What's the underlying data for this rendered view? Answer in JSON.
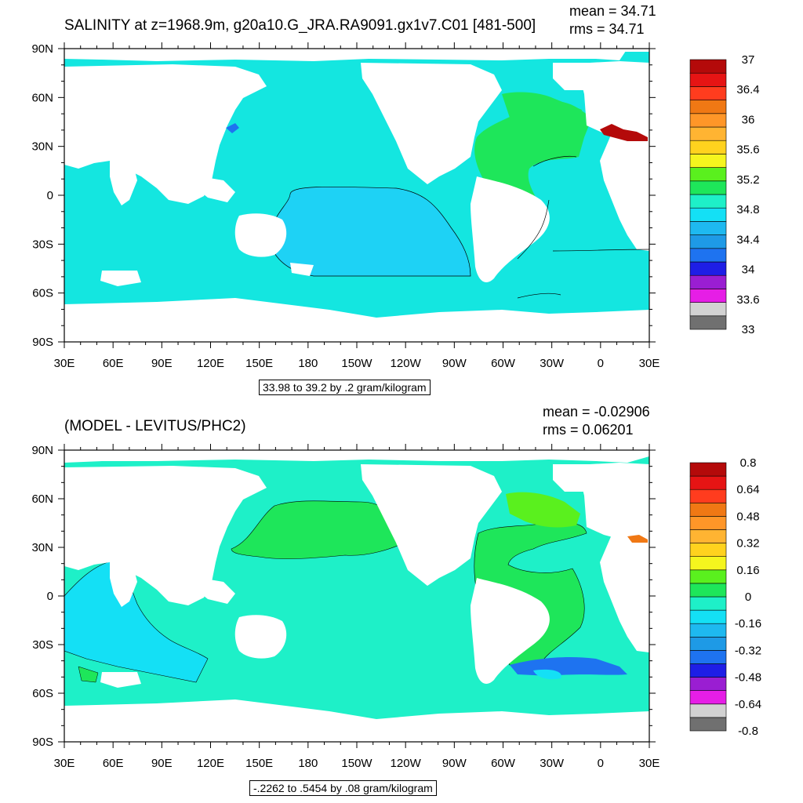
{
  "panel_top": {
    "title": "SALINITY at z=1968.9m, g20a10.G_JRA.RA9091.gx1v7.C01 [481-500]",
    "mean_label": "mean = 34.71",
    "rms_label": "rms = 34.71",
    "contour_info": "33.98 to 39.2 by .2 gram/kilogram",
    "colorbar": {
      "colors": [
        "#707070",
        "#d2d2d2",
        "#e61ee6",
        "#9a1ed2",
        "#1e1ee6",
        "#1e73f0",
        "#1e9ae6",
        "#1eb9f0",
        "#14e0f5",
        "#1ef0c8",
        "#1ee65a",
        "#5af01e",
        "#f5f51e",
        "#ffd21e",
        "#ffb432",
        "#ff9628",
        "#f07814",
        "#ff3c1e",
        "#e61414",
        "#b40a0a"
      ],
      "labels": [
        "33",
        "33.6",
        "34",
        "34.4",
        "34.8",
        "35.2",
        "35.6",
        "36",
        "36.4",
        "37"
      ]
    }
  },
  "panel_bottom": {
    "title": "(MODEL - LEVITUS/PHC2)",
    "mean_label": "mean = -0.02906",
    "rms_label": "rms = 0.06201",
    "contour_info": "-.2262 to .5454 by .08 gram/kilogram",
    "colorbar": {
      "colors": [
        "#707070",
        "#d2d2d2",
        "#e61ee6",
        "#9a1ed2",
        "#1e1ee6",
        "#1e73f0",
        "#1e9ae6",
        "#1eb9f0",
        "#14e0f5",
        "#1ef0c8",
        "#1ee65a",
        "#5af01e",
        "#f5f51e",
        "#ffd21e",
        "#ffb432",
        "#ff9628",
        "#f07814",
        "#ff3c1e",
        "#e61414",
        "#b40a0a"
      ],
      "labels": [
        "-0.8",
        "-0.64",
        "-0.48",
        "-0.32",
        "-0.16",
        "0",
        "0.16",
        "0.32",
        "0.48",
        "0.64",
        "0.8"
      ]
    }
  },
  "axes": {
    "lat_labels": [
      "90S",
      "60S",
      "30S",
      "0",
      "30N",
      "60N",
      "90N"
    ],
    "lon_labels": [
      "30E",
      "60E",
      "90E",
      "120E",
      "150E",
      "180",
      "150W",
      "120W",
      "90W",
      "60W",
      "30W",
      "0",
      "30E"
    ]
  },
  "colors": {
    "ocean_top_base": "#14e6e0",
    "ocean_top_pacific": "#1ed2f5",
    "ocean_top_atlantic": "#14e67a",
    "ocean_bottom_base": "#1ef0c8",
    "ocean_bottom_green": "#1ee65a",
    "ocean_bottom_cyan": "#14e0f5"
  }
}
